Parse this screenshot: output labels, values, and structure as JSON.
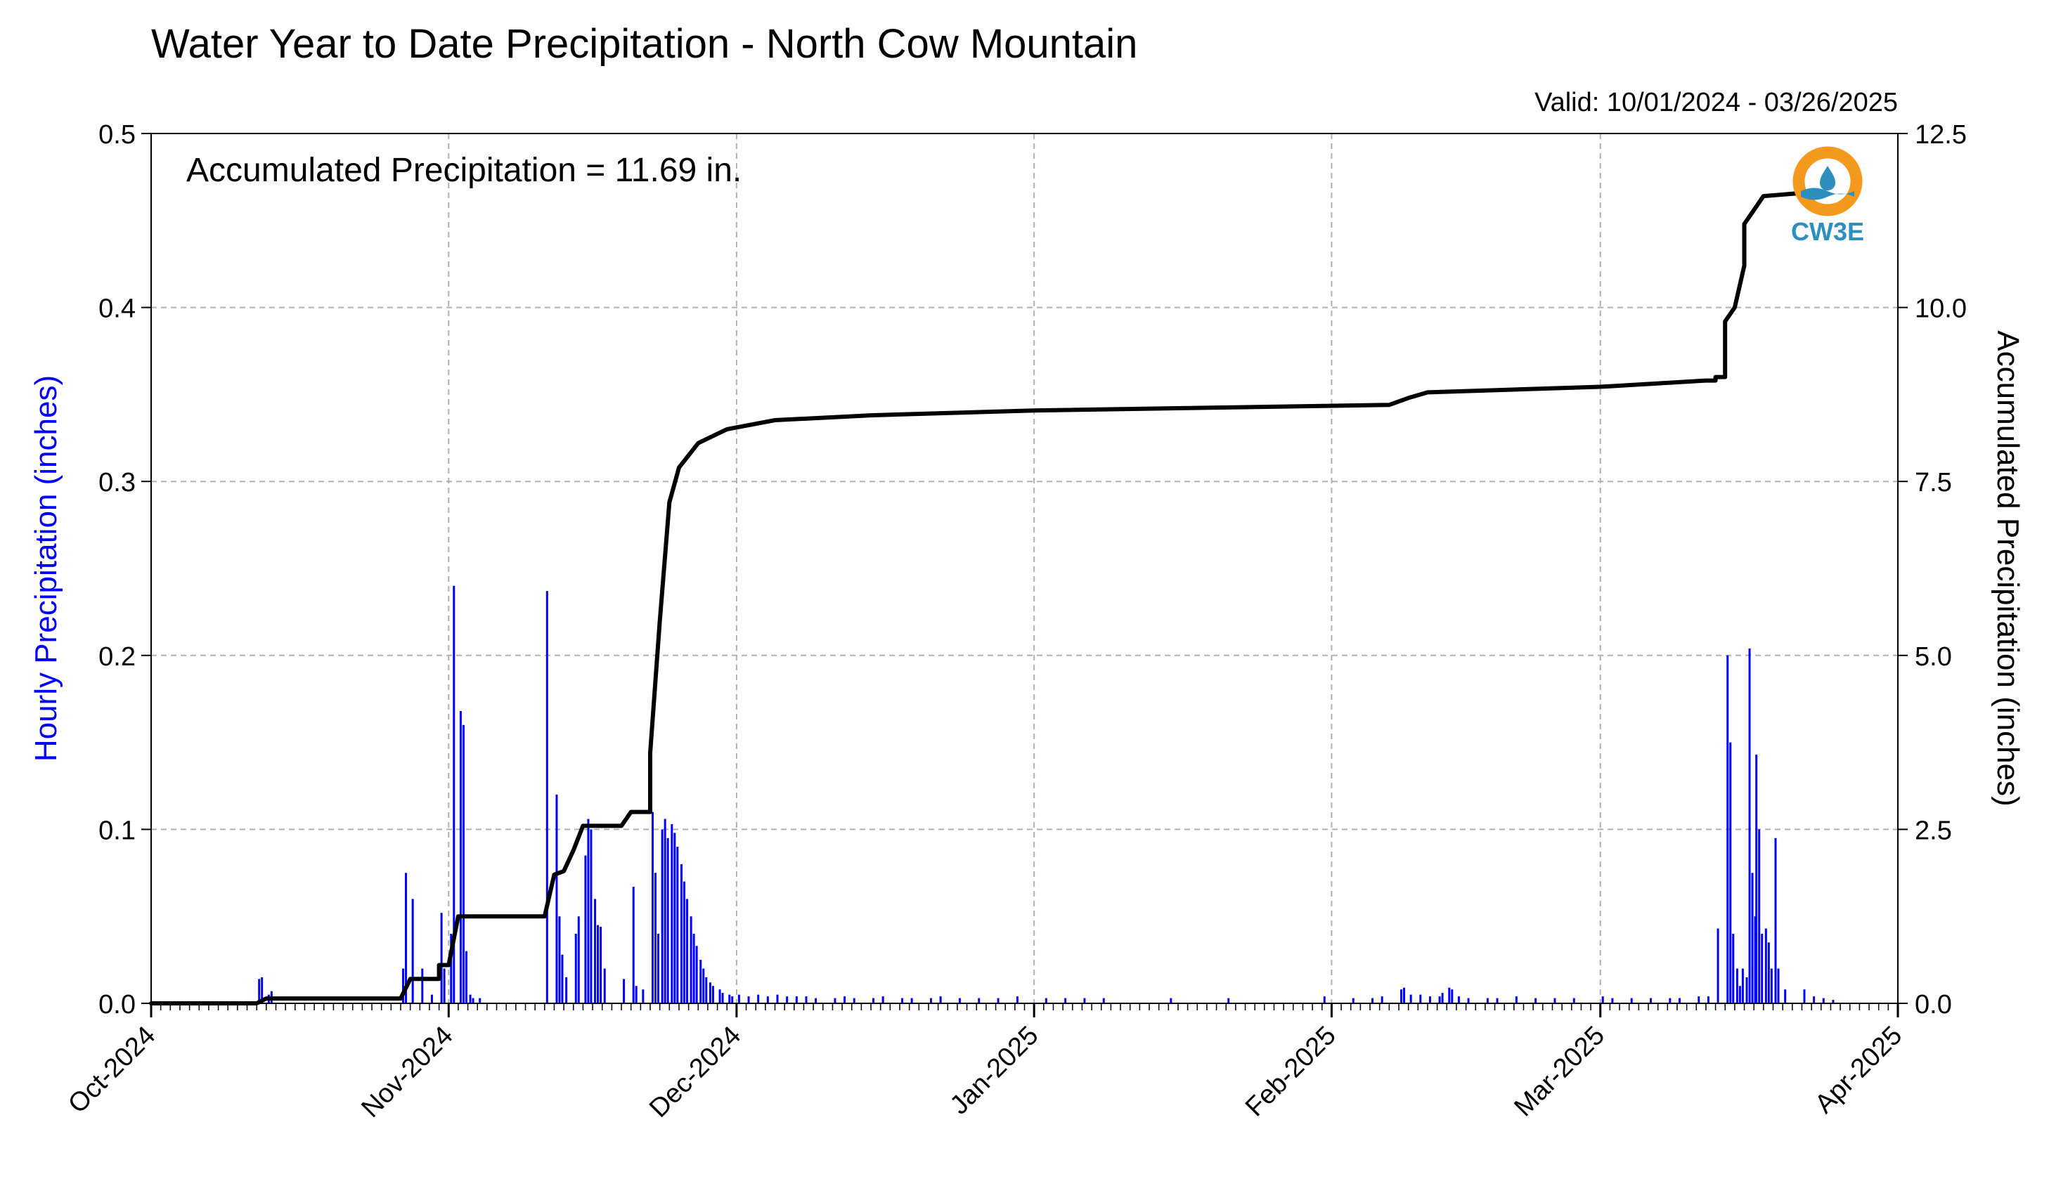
{
  "chart_data": {
    "type": "bar+line",
    "title": "Water Year to Date Precipitation - North Cow Mountain",
    "valid_text": "Valid: 10/01/2024 - 03/26/2025",
    "annotation": "Accumulated Precipitation = 11.69 in.",
    "logo_text": "CW3E",
    "ylabel_left": "Hourly Precipitation (inches)",
    "ylabel_right": "Accumulated Precipitation (inches)",
    "ylim_left": [
      0,
      0.5
    ],
    "ylim_right": [
      0,
      12.5
    ],
    "yticks_left": [
      "0.0",
      "0.1",
      "0.2",
      "0.3",
      "0.4",
      "0.5"
    ],
    "yticks_right": [
      "0.0",
      "2.5",
      "5.0",
      "7.5",
      "10.0",
      "12.5"
    ],
    "x_start": "2024-10-01",
    "x_end": "2025-04-01",
    "xtick_labels": [
      "Oct-2024",
      "Nov-2024",
      "Dec-2024",
      "Jan-2025",
      "Feb-2025",
      "Mar-2025",
      "Apr-2025"
    ],
    "xtick_dates": [
      "2024-10-01",
      "2024-11-01",
      "2024-12-01",
      "2025-01-01",
      "2025-02-01",
      "2025-03-01",
      "2025-04-01"
    ],
    "grid": true,
    "colors": {
      "hourly": "#0000ff",
      "accumulated": "#000000",
      "grid": "#b0b0b0",
      "logo_orange": "#f39a1e",
      "logo_blue": "#2e8fbf"
    },
    "hourly_series": {
      "name": "Hourly Precipitation",
      "points": [
        [
          "2024-10-12",
          0.014
        ],
        [
          "2024-10-12",
          0.015
        ],
        [
          "2024-10-13",
          0.005
        ],
        [
          "2024-10-13",
          0.007
        ],
        [
          "2024-10-27",
          0.02
        ],
        [
          "2024-10-27",
          0.075
        ],
        [
          "2024-10-28",
          0.06
        ],
        [
          "2024-10-29",
          0.02
        ],
        [
          "2024-10-30",
          0.005
        ],
        [
          "2024-10-31",
          0.052
        ],
        [
          "2024-10-31",
          0.02
        ],
        [
          "2024-11-01",
          0.04
        ],
        [
          "2024-11-01",
          0.24
        ],
        [
          "2024-11-02",
          0.168
        ],
        [
          "2024-11-02",
          0.16
        ],
        [
          "2024-11-02",
          0.03
        ],
        [
          "2024-11-03",
          0.005
        ],
        [
          "2024-11-03",
          0.003
        ],
        [
          "2024-11-04",
          0.003
        ],
        [
          "2024-11-11",
          0.237
        ],
        [
          "2024-11-12",
          0.12
        ],
        [
          "2024-11-12",
          0.05
        ],
        [
          "2024-11-12",
          0.028
        ],
        [
          "2024-11-13",
          0.015
        ],
        [
          "2024-11-14",
          0.04
        ],
        [
          "2024-11-14",
          0.05
        ],
        [
          "2024-11-15",
          0.085
        ],
        [
          "2024-11-15",
          0.106
        ],
        [
          "2024-11-15",
          0.1
        ],
        [
          "2024-11-16",
          0.06
        ],
        [
          "2024-11-16",
          0.045
        ],
        [
          "2024-11-16",
          0.044
        ],
        [
          "2024-11-17",
          0.02
        ],
        [
          "2024-11-19",
          0.014
        ],
        [
          "2024-11-20",
          0.067
        ],
        [
          "2024-11-20",
          0.01
        ],
        [
          "2024-11-21",
          0.008
        ],
        [
          "2024-11-22",
          0.11
        ],
        [
          "2024-11-22",
          0.075
        ],
        [
          "2024-11-22",
          0.04
        ],
        [
          "2024-11-23",
          0.1
        ],
        [
          "2024-11-23",
          0.106
        ],
        [
          "2024-11-23",
          0.095
        ],
        [
          "2024-11-24",
          0.103
        ],
        [
          "2024-11-24",
          0.098
        ],
        [
          "2024-11-24",
          0.09
        ],
        [
          "2024-11-25",
          0.08
        ],
        [
          "2024-11-25",
          0.07
        ],
        [
          "2024-11-25",
          0.06
        ],
        [
          "2024-11-26",
          0.05
        ],
        [
          "2024-11-26",
          0.04
        ],
        [
          "2024-11-26",
          0.033
        ],
        [
          "2024-11-27",
          0.025
        ],
        [
          "2024-11-27",
          0.02
        ],
        [
          "2024-11-27",
          0.015
        ],
        [
          "2024-11-28",
          0.012
        ],
        [
          "2024-11-28",
          0.01
        ],
        [
          "2024-11-29",
          0.008
        ],
        [
          "2024-11-29",
          0.006
        ],
        [
          "2024-11-30",
          0.005
        ],
        [
          "2024-11-30",
          0.004
        ],
        [
          "2024-12-01",
          0.005
        ],
        [
          "2024-12-02",
          0.004
        ],
        [
          "2024-12-03",
          0.005
        ],
        [
          "2024-12-04",
          0.004
        ],
        [
          "2024-12-05",
          0.005
        ],
        [
          "2024-12-06",
          0.004
        ],
        [
          "2024-12-07",
          0.004
        ],
        [
          "2024-12-08",
          0.004
        ],
        [
          "2024-12-09",
          0.003
        ],
        [
          "2024-12-11",
          0.003
        ],
        [
          "2024-12-12",
          0.004
        ],
        [
          "2024-12-13",
          0.003
        ],
        [
          "2024-12-15",
          0.003
        ],
        [
          "2024-12-16",
          0.004
        ],
        [
          "2024-12-18",
          0.003
        ],
        [
          "2024-12-19",
          0.003
        ],
        [
          "2024-12-21",
          0.003
        ],
        [
          "2024-12-22",
          0.004
        ],
        [
          "2024-12-24",
          0.003
        ],
        [
          "2024-12-26",
          0.003
        ],
        [
          "2024-12-28",
          0.003
        ],
        [
          "2024-12-30",
          0.004
        ],
        [
          "2025-01-02",
          0.003
        ],
        [
          "2025-01-04",
          0.003
        ],
        [
          "2025-01-06",
          0.003
        ],
        [
          "2025-01-08",
          0.003
        ],
        [
          "2025-01-15",
          0.003
        ],
        [
          "2025-01-21",
          0.003
        ],
        [
          "2025-01-31",
          0.004
        ],
        [
          "2025-02-03",
          0.003
        ],
        [
          "2025-02-05",
          0.003
        ],
        [
          "2025-02-06",
          0.004
        ],
        [
          "2025-02-08",
          0.008
        ],
        [
          "2025-02-08",
          0.009
        ],
        [
          "2025-02-09",
          0.005
        ],
        [
          "2025-02-10",
          0.005
        ],
        [
          "2025-02-11",
          0.004
        ],
        [
          "2025-02-12",
          0.004
        ],
        [
          "2025-02-12",
          0.006
        ],
        [
          "2025-02-13",
          0.009
        ],
        [
          "2025-02-13",
          0.008
        ],
        [
          "2025-02-14",
          0.004
        ],
        [
          "2025-02-15",
          0.003
        ],
        [
          "2025-02-17",
          0.003
        ],
        [
          "2025-02-18",
          0.003
        ],
        [
          "2025-02-20",
          0.004
        ],
        [
          "2025-02-22",
          0.003
        ],
        [
          "2025-02-24",
          0.003
        ],
        [
          "2025-02-26",
          0.003
        ],
        [
          "2025-03-01",
          0.004
        ],
        [
          "2025-03-02",
          0.003
        ],
        [
          "2025-03-04",
          0.003
        ],
        [
          "2025-03-06",
          0.003
        ],
        [
          "2025-03-08",
          0.003
        ],
        [
          "2025-03-09",
          0.003
        ],
        [
          "2025-03-11",
          0.004
        ],
        [
          "2025-03-12",
          0.004
        ],
        [
          "2025-03-13",
          0.043
        ],
        [
          "2025-03-14",
          0.2
        ],
        [
          "2025-03-14",
          0.15
        ],
        [
          "2025-03-14",
          0.04
        ],
        [
          "2025-03-15",
          0.02
        ],
        [
          "2025-03-15",
          0.01
        ],
        [
          "2025-03-15",
          0.02
        ],
        [
          "2025-03-16",
          0.015
        ],
        [
          "2025-03-16",
          0.204
        ],
        [
          "2025-03-16",
          0.075
        ],
        [
          "2025-03-16",
          0.05
        ],
        [
          "2025-03-17",
          0.143
        ],
        [
          "2025-03-17",
          0.1
        ],
        [
          "2025-03-17",
          0.04
        ],
        [
          "2025-03-18",
          0.043
        ],
        [
          "2025-03-18",
          0.035
        ],
        [
          "2025-03-18",
          0.02
        ],
        [
          "2025-03-19",
          0.095
        ],
        [
          "2025-03-19",
          0.02
        ],
        [
          "2025-03-20",
          0.008
        ],
        [
          "2025-03-22",
          0.008
        ],
        [
          "2025-03-23",
          0.004
        ],
        [
          "2025-03-24",
          0.003
        ],
        [
          "2025-03-25",
          0.002
        ]
      ]
    },
    "accumulated_series": {
      "name": "Accumulated Precipitation",
      "points": [
        [
          "2024-10-01",
          0.0
        ],
        [
          "2024-10-12",
          0.0
        ],
        [
          "2024-10-13",
          0.07
        ],
        [
          "2024-10-27",
          0.07
        ],
        [
          "2024-10-28",
          0.35
        ],
        [
          "2024-10-31",
          0.35
        ],
        [
          "2024-10-31",
          0.55
        ],
        [
          "2024-11-01",
          0.55
        ],
        [
          "2024-11-02",
          1.25
        ],
        [
          "2024-11-11",
          1.25
        ],
        [
          "2024-11-12",
          1.85
        ],
        [
          "2024-11-13",
          1.9
        ],
        [
          "2024-11-14",
          2.2
        ],
        [
          "2024-11-15",
          2.55
        ],
        [
          "2024-11-19",
          2.55
        ],
        [
          "2024-11-20",
          2.75
        ],
        [
          "2024-11-22",
          2.75
        ],
        [
          "2024-11-22",
          3.6
        ],
        [
          "2024-11-23",
          5.5
        ],
        [
          "2024-11-24",
          7.2
        ],
        [
          "2024-11-25",
          7.7
        ],
        [
          "2024-11-27",
          8.05
        ],
        [
          "2024-11-30",
          8.25
        ],
        [
          "2024-12-05",
          8.38
        ],
        [
          "2024-12-15",
          8.45
        ],
        [
          "2025-01-01",
          8.52
        ],
        [
          "2025-02-07",
          8.6
        ],
        [
          "2025-02-09",
          8.7
        ],
        [
          "2025-02-11",
          8.78
        ],
        [
          "2025-03-01",
          8.86
        ],
        [
          "2025-03-12",
          8.95
        ],
        [
          "2025-03-13",
          8.95
        ],
        [
          "2025-03-13",
          9.0
        ],
        [
          "2025-03-14",
          9.0
        ],
        [
          "2025-03-14",
          9.8
        ],
        [
          "2025-03-15",
          10.0
        ],
        [
          "2025-03-16",
          10.6
        ],
        [
          "2025-03-16",
          11.2
        ],
        [
          "2025-03-17",
          11.4
        ],
        [
          "2025-03-18",
          11.6
        ],
        [
          "2025-03-26",
          11.69
        ]
      ]
    }
  }
}
